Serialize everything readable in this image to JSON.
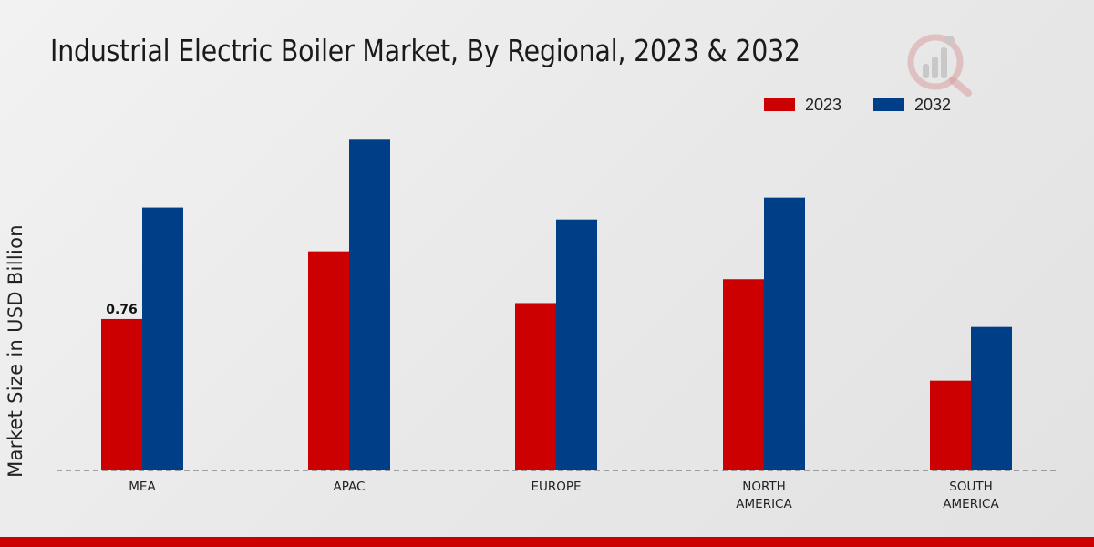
{
  "chart_data": {
    "type": "bar",
    "title": "Industrial Electric Boiler Market, By Regional, 2023 & 2032",
    "xlabel": "",
    "ylabel": "Market Size in USD Billion",
    "categories": [
      [
        "MEA"
      ],
      [
        "APAC"
      ],
      [
        "EUROPE"
      ],
      [
        "NORTH",
        "AMERICA"
      ],
      [
        "SOUTH",
        "AMERICA"
      ]
    ],
    "series": [
      {
        "name": "2023",
        "color": "#cc0000",
        "values": [
          0.76,
          1.1,
          0.84,
          0.96,
          0.45
        ]
      },
      {
        "name": "2032",
        "color": "#003f87",
        "values": [
          1.32,
          1.66,
          1.26,
          1.37,
          0.72
        ]
      }
    ],
    "data_labels": [
      {
        "series": 0,
        "index": 0,
        "text": "0.76"
      }
    ],
    "ylim": [
      0,
      3.2
    ],
    "legend_position": "top-right",
    "grid": false
  }
}
